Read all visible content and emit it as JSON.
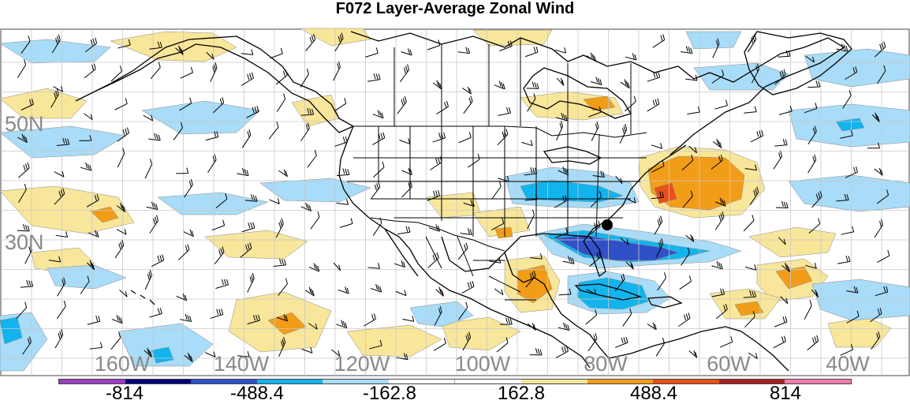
{
  "title": "F072 Layer-Average Zonal Wind",
  "lat_labels": [
    "50N",
    "30N"
  ],
  "lon_labels": [
    "160W",
    "140W",
    "120W",
    "100W",
    "80W",
    "60W",
    "40W"
  ],
  "colorbar": {
    "colors": [
      "#9b3fc4",
      "#00007a",
      "#3050c8",
      "#12b4ee",
      "#a8dcf8",
      "#ffffff",
      "#ffffff",
      "#f8e69a",
      "#f29d18",
      "#e8501a",
      "#a82020",
      "#f080b0"
    ],
    "labels": [
      "-814",
      "-488.4",
      "-162.8",
      "162.8",
      "488.4",
      "814"
    ]
  },
  "fill_colors": {
    "light_blue": "#a8dcf8",
    "mid_blue": "#12b4ee",
    "dark_blue": "#3050c8",
    "light_orange": "#f8e69a",
    "mid_orange": "#f29d18",
    "red_orange": "#e8501a"
  }
}
